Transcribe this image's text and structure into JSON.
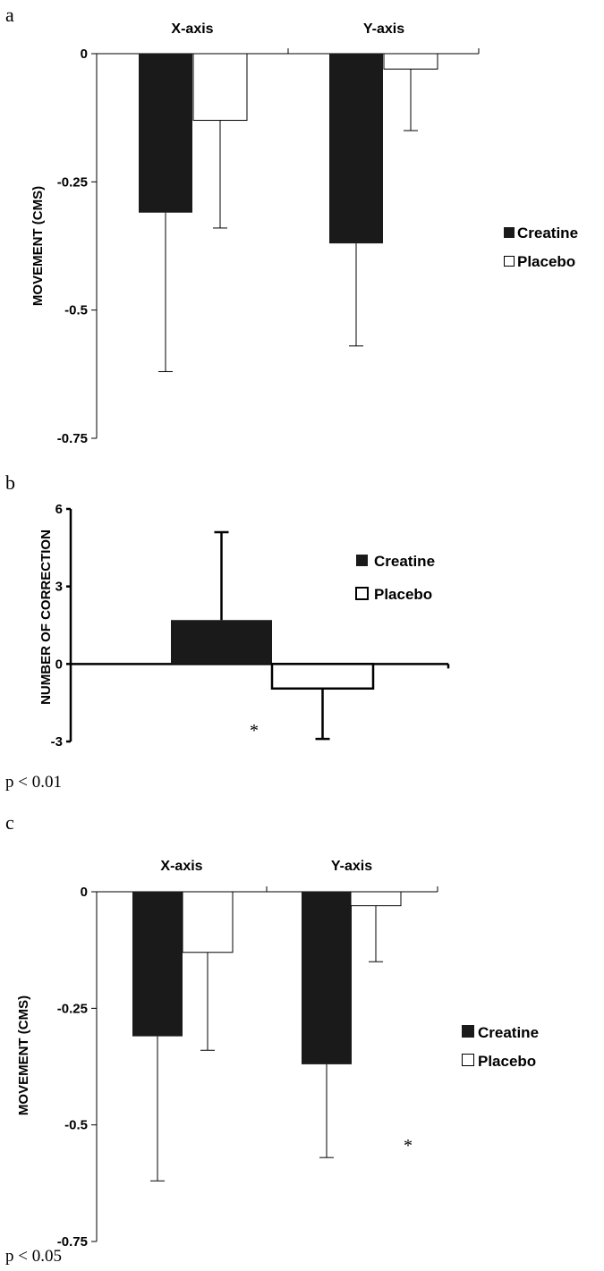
{
  "panels": [
    {
      "letter": "a",
      "chart_data": {
        "type": "bar",
        "categories": [
          "X-axis",
          "Y-axis"
        ],
        "series": [
          {
            "name": "Creatine",
            "values": [
              -0.31,
              -0.37
            ],
            "error": [
              0.31,
              0.2
            ]
          },
          {
            "name": "Placebo",
            "values": [
              -0.13,
              -0.03
            ],
            "error": [
              0.21,
              0.12
            ]
          }
        ],
        "ylabel": "MOVEMENT (CMS)",
        "ylim": [
          -0.75,
          0
        ],
        "yticks": [
          0,
          -0.25,
          -0.5,
          -0.75
        ],
        "ytick_labels": [
          "0",
          "-0.25",
          "-0.5",
          "-0.75"
        ],
        "category_labels_position": "top",
        "legend": [
          "Creatine",
          "Placebo"
        ],
        "legend_position": "right",
        "annotations": []
      }
    },
    {
      "letter": "b",
      "chart_data": {
        "type": "bar",
        "categories": [
          ""
        ],
        "series": [
          {
            "name": "Creatine",
            "values": [
              1.7
            ],
            "error": [
              3.4
            ]
          },
          {
            "name": "Placebo",
            "values": [
              -0.95
            ],
            "error": [
              1.95
            ]
          }
        ],
        "ylabel": "NUMBER OF CORRECTION",
        "ylim": [
          -3,
          6
        ],
        "yticks": [
          6,
          3,
          0,
          -3
        ],
        "ytick_labels": [
          "6",
          "3",
          "0",
          "-3"
        ],
        "legend": [
          "Creatine",
          "Placebo"
        ],
        "legend_position": "right",
        "annotations": [
          "*"
        ]
      },
      "note": "p < 0.01"
    },
    {
      "letter": "c",
      "chart_data": {
        "type": "bar",
        "categories": [
          "X-axis",
          "Y-axis"
        ],
        "series": [
          {
            "name": "Creatine",
            "values": [
              -0.31,
              -0.37
            ],
            "error": [
              0.31,
              0.2
            ]
          },
          {
            "name": "Placebo",
            "values": [
              -0.13,
              -0.03
            ],
            "error": [
              0.21,
              0.12
            ]
          }
        ],
        "ylabel": "MOVEMENT (CMS)",
        "ylim": [
          -0.75,
          0
        ],
        "yticks": [
          0,
          -0.25,
          -0.5,
          -0.75
        ],
        "ytick_labels": [
          "0",
          "-0.25",
          "-0.5",
          "-0.75"
        ],
        "category_labels_position": "top",
        "legend": [
          "Creatine",
          "Placebo"
        ],
        "legend_position": "right",
        "annotations": [
          "*"
        ]
      },
      "note": "p < 0.05"
    }
  ],
  "colors": {
    "creatine": "#1a1a1a",
    "placebo": "#ffffff",
    "axis": "#000000"
  }
}
